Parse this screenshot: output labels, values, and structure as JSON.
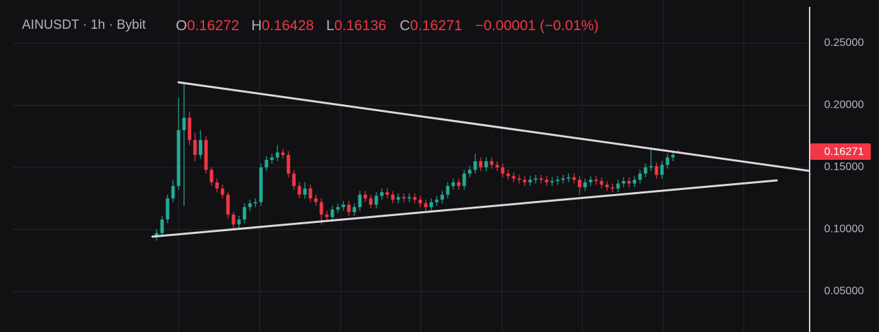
{
  "chart_data": {
    "type": "candlestick",
    "legend": {
      "symbol": "AINUSDT",
      "interval": "1h",
      "exchange": "Bybit",
      "open_label": "O",
      "high_label": "H",
      "low_label": "L",
      "close_label": "C",
      "change": "−0.00001 (−0.01%)"
    },
    "up_color": "#22ab94",
    "down_color": "#f23645",
    "ylim": [
      0.0174,
      0.2848
    ],
    "yticks": [
      {
        "value": 0.05,
        "label": "0.05000"
      },
      {
        "value": 0.1,
        "label": "0.10000"
      },
      {
        "value": 0.15,
        "label": "0.15000"
      },
      {
        "value": 0.2,
        "label": "0.20000"
      },
      {
        "value": 0.25,
        "label": "0.25000"
      }
    ],
    "grid": true,
    "open": [
      0.094,
      0.097,
      0.108,
      0.125,
      0.135,
      0.18,
      0.19,
      0.172,
      0.16,
      0.172,
      0.148,
      0.138,
      0.133,
      0.128,
      0.112,
      0.104,
      0.108,
      0.118,
      0.121,
      0.122,
      0.15,
      0.156,
      0.158,
      0.162,
      0.16,
      0.145,
      0.135,
      0.128,
      0.133,
      0.125,
      0.122,
      0.112,
      0.11,
      0.116,
      0.118,
      0.12,
      0.114,
      0.118,
      0.128,
      0.125,
      0.12,
      0.127,
      0.13,
      0.128,
      0.124,
      0.126,
      0.125,
      0.126,
      0.124,
      0.121,
      0.118,
      0.122,
      0.124,
      0.128,
      0.135,
      0.138,
      0.135,
      0.145,
      0.148,
      0.155,
      0.15,
      0.155,
      0.152,
      0.15,
      0.145,
      0.143,
      0.141,
      0.14,
      0.138,
      0.14,
      0.141,
      0.14,
      0.138,
      0.139,
      0.14,
      0.141,
      0.142,
      0.14,
      0.134,
      0.138,
      0.14,
      0.139,
      0.136,
      0.134,
      0.133,
      0.137,
      0.139,
      0.137,
      0.14,
      0.145,
      0.15,
      0.151,
      0.144,
      0.152,
      0.158,
      0.16272
    ],
    "high": [
      0.1,
      0.111,
      0.128,
      0.14,
      0.206,
      0.217,
      0.195,
      0.178,
      0.18,
      0.175,
      0.15,
      0.141,
      0.136,
      0.13,
      0.114,
      0.111,
      0.121,
      0.124,
      0.125,
      0.153,
      0.159,
      0.161,
      0.168,
      0.165,
      0.163,
      0.148,
      0.138,
      0.138,
      0.136,
      0.128,
      0.125,
      0.115,
      0.119,
      0.121,
      0.123,
      0.123,
      0.121,
      0.131,
      0.131,
      0.128,
      0.13,
      0.133,
      0.133,
      0.131,
      0.129,
      0.129,
      0.129,
      0.129,
      0.127,
      0.124,
      0.125,
      0.127,
      0.131,
      0.138,
      0.141,
      0.141,
      0.148,
      0.151,
      0.161,
      0.158,
      0.158,
      0.158,
      0.155,
      0.153,
      0.148,
      0.146,
      0.144,
      0.143,
      0.143,
      0.144,
      0.144,
      0.143,
      0.142,
      0.143,
      0.144,
      0.145,
      0.145,
      0.143,
      0.141,
      0.143,
      0.143,
      0.142,
      0.139,
      0.137,
      0.14,
      0.142,
      0.142,
      0.143,
      0.148,
      0.153,
      0.166,
      0.154,
      0.155,
      0.161,
      0.163,
      0.16428
    ],
    "low": [
      0.091,
      0.094,
      0.105,
      0.122,
      0.132,
      0.119,
      0.168,
      0.155,
      0.157,
      0.145,
      0.135,
      0.13,
      0.125,
      0.109,
      0.101,
      0.101,
      0.105,
      0.115,
      0.118,
      0.119,
      0.147,
      0.153,
      0.155,
      0.157,
      0.142,
      0.132,
      0.125,
      0.125,
      0.122,
      0.119,
      0.104,
      0.107,
      0.107,
      0.113,
      0.115,
      0.111,
      0.111,
      0.115,
      0.122,
      0.117,
      0.117,
      0.124,
      0.125,
      0.121,
      0.121,
      0.122,
      0.122,
      0.121,
      0.118,
      0.115,
      0.115,
      0.119,
      0.121,
      0.125,
      0.132,
      0.132,
      0.132,
      0.142,
      0.145,
      0.147,
      0.147,
      0.149,
      0.147,
      0.142,
      0.14,
      0.138,
      0.137,
      0.135,
      0.135,
      0.137,
      0.137,
      0.135,
      0.135,
      0.136,
      0.137,
      0.138,
      0.137,
      0.128,
      0.131,
      0.135,
      0.136,
      0.133,
      0.131,
      0.13,
      0.13,
      0.134,
      0.134,
      0.134,
      0.137,
      0.142,
      0.147,
      0.141,
      0.141,
      0.149,
      0.155,
      0.16136
    ],
    "close": [
      0.097,
      0.108,
      0.125,
      0.135,
      0.18,
      0.19,
      0.172,
      0.16,
      0.172,
      0.148,
      0.138,
      0.133,
      0.128,
      0.112,
      0.104,
      0.108,
      0.118,
      0.121,
      0.122,
      0.15,
      0.156,
      0.158,
      0.162,
      0.16,
      0.145,
      0.135,
      0.128,
      0.133,
      0.125,
      0.122,
      0.112,
      0.11,
      0.116,
      0.118,
      0.12,
      0.114,
      0.118,
      0.128,
      0.125,
      0.12,
      0.127,
      0.13,
      0.128,
      0.124,
      0.126,
      0.125,
      0.126,
      0.124,
      0.121,
      0.118,
      0.122,
      0.124,
      0.128,
      0.135,
      0.138,
      0.135,
      0.145,
      0.148,
      0.155,
      0.15,
      0.155,
      0.152,
      0.15,
      0.145,
      0.143,
      0.141,
      0.14,
      0.138,
      0.14,
      0.141,
      0.14,
      0.138,
      0.139,
      0.14,
      0.141,
      0.142,
      0.14,
      0.134,
      0.138,
      0.14,
      0.139,
      0.136,
      0.134,
      0.133,
      0.137,
      0.139,
      0.137,
      0.14,
      0.145,
      0.15,
      0.151,
      0.144,
      0.152,
      0.158,
      0.16,
      0.16271
    ]
  }
}
